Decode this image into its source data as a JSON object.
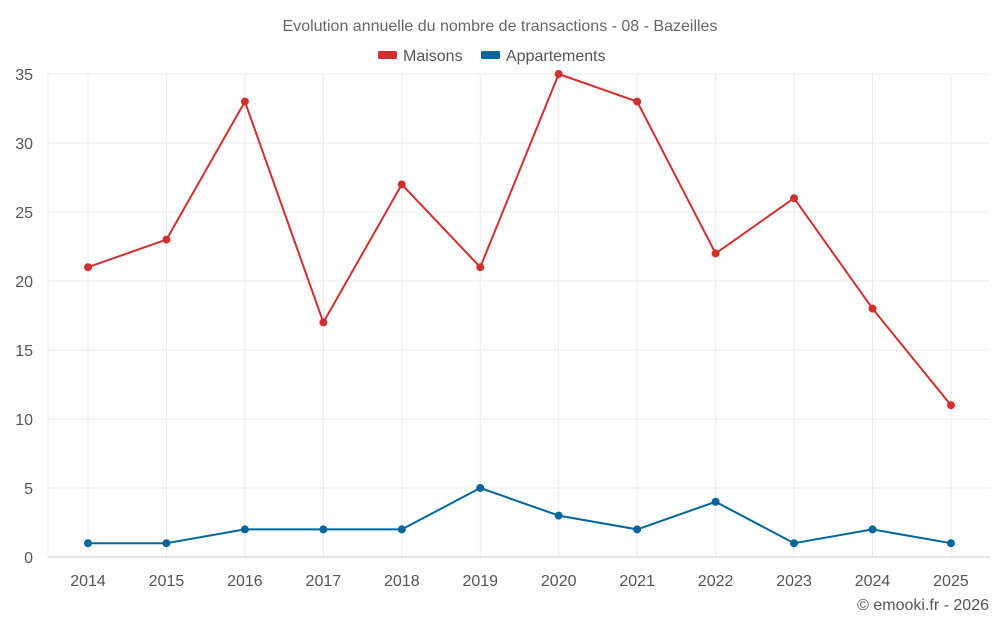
{
  "chart_data": {
    "type": "line",
    "title": "Evolution annuelle du nombre de transactions - 08 - Bazeilles",
    "categories": [
      "2014",
      "2015",
      "2016",
      "2017",
      "2018",
      "2019",
      "2020",
      "2021",
      "2022",
      "2023",
      "2024",
      "2025"
    ],
    "series": [
      {
        "name": "Maisons",
        "color": "#d32f2f",
        "values": [
          21,
          23,
          33,
          17,
          27,
          21,
          35,
          33,
          22,
          26,
          18,
          11
        ]
      },
      {
        "name": "Appartements",
        "color": "#00669b",
        "values": [
          1,
          1,
          2,
          2,
          2,
          5,
          3,
          2,
          4,
          1,
          2,
          1
        ]
      }
    ],
    "yticks": [
      0,
      5,
      10,
      15,
      20,
      25,
      30,
      35
    ],
    "ylim": [
      0,
      35
    ],
    "xlabel": "",
    "ylabel": "",
    "grid": true,
    "legend_position": "top-center"
  },
  "credit": "© emooki.fr - 2026"
}
